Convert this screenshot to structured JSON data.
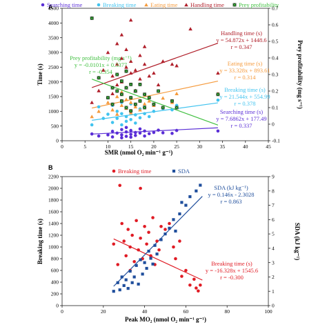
{
  "colors": {
    "searching": "#5a2ed6",
    "breaking": "#41c3ef",
    "eating": "#f59a3c",
    "handling": "#b01f2a",
    "profitability": "#3fbf3f",
    "breaking_b": "#e01b24",
    "sda": "#1f4e9c",
    "axis": "#222222"
  },
  "icons": {
    "searching": "circle-marker",
    "breaking": "circle-marker",
    "eating": "triangle-marker",
    "handling": "triangle-marker",
    "profitability": "x-square-marker",
    "breaking_b": "circle-marker",
    "sda": "square-marker"
  },
  "chart_data": [
    {
      "panel": "A",
      "type": "scatter",
      "xlabel": "SMR (nmol O₂ min⁻¹ g⁻¹)",
      "ylabel": "Time (s)",
      "y2label": "Prey profitability (mg s⁻¹)",
      "xlim": [
        0,
        45
      ],
      "ylim": [
        0,
        4500
      ],
      "y2lim": [
        -0.1,
        0.7
      ],
      "xticks": [
        "0",
        "5",
        "10",
        "15",
        "20",
        "25",
        "30",
        "35",
        "40",
        "45"
      ],
      "yticks": [
        "0",
        "500",
        "1000",
        "1500",
        "2000",
        "2500",
        "3000",
        "3500",
        "4000",
        "4500"
      ],
      "y2ticks": [
        "-0.1",
        "0",
        "0.1",
        "0.2",
        "0.3",
        "0.4",
        "0.5",
        "0.6",
        "0.7"
      ],
      "legend_position": "top",
      "series": [
        {
          "key": "searching",
          "name": "Searching time",
          "axis": "left",
          "marker": "circle",
          "fit": {
            "slope": 7.6862,
            "intercept": 177.49,
            "x_range": [
              6.5,
              34
            ]
          },
          "annotation": [
            "Searching time (s)",
            "y = 7.6862x + 177.49",
            "r = 0.337"
          ],
          "points": [
            [
              6.5,
              230
            ],
            [
              8,
              160
            ],
            [
              10,
              200
            ],
            [
              11,
              320
            ],
            [
              11,
              130
            ],
            [
              12,
              260
            ],
            [
              13,
              380
            ],
            [
              13,
              200
            ],
            [
              13,
              100
            ],
            [
              14,
              300
            ],
            [
              14,
              150
            ],
            [
              14,
              450
            ],
            [
              15,
              220
            ],
            [
              15,
              350
            ],
            [
              15,
              120
            ],
            [
              16,
              280
            ],
            [
              16,
              180
            ],
            [
              17,
              260
            ],
            [
              17,
              400
            ],
            [
              18,
              330
            ],
            [
              18,
              160
            ],
            [
              19,
              240
            ],
            [
              20,
              280
            ],
            [
              21,
              360
            ],
            [
              22,
              270
            ],
            [
              24,
              250
            ],
            [
              25,
              350
            ],
            [
              34,
              330
            ]
          ]
        },
        {
          "key": "breaking",
          "name": "Breaking time",
          "axis": "left",
          "marker": "circle",
          "fit": {
            "slope": 21.544,
            "intercept": 554.99,
            "x_range": [
              6.5,
              34
            ]
          },
          "annotation": [
            "Breaking time (s)",
            "y = 21.544x + 554.99",
            "r = 0.378"
          ],
          "points": [
            [
              6.5,
              540
            ],
            [
              8,
              1150
            ],
            [
              9,
              760
            ],
            [
              10,
              900
            ],
            [
              11,
              1200
            ],
            [
              11,
              620
            ],
            [
              12,
              1000
            ],
            [
              12,
              760
            ],
            [
              13,
              1300
            ],
            [
              13,
              920
            ],
            [
              13,
              540
            ],
            [
              14,
              1120
            ],
            [
              14,
              820
            ],
            [
              14,
              660
            ],
            [
              15,
              1000
            ],
            [
              15,
              720
            ],
            [
              15,
              1250
            ],
            [
              16,
              880
            ],
            [
              16,
              600
            ],
            [
              17,
              1080
            ],
            [
              17,
              780
            ],
            [
              18,
              920
            ],
            [
              18,
              1150
            ],
            [
              19,
              820
            ],
            [
              20,
              1000
            ],
            [
              22,
              1100
            ],
            [
              24,
              1050
            ],
            [
              25,
              1200
            ],
            [
              34,
              1380
            ]
          ]
        },
        {
          "key": "eating",
          "name": "Eating time",
          "axis": "left",
          "marker": "triangle",
          "fit": {
            "slope": 33.328,
            "intercept": 893.61,
            "x_range": [
              6.5,
              34
            ]
          },
          "annotation": [
            "Eating time (s)",
            "y = 33.328x + 893.61",
            "r = 0.314"
          ],
          "points": [
            [
              6.5,
              820
            ],
            [
              8,
              1000
            ],
            [
              10,
              1300
            ],
            [
              11,
              1050
            ],
            [
              12,
              1500
            ],
            [
              12,
              900
            ],
            [
              13,
              1200
            ],
            [
              13,
              1650
            ],
            [
              14,
              1100
            ],
            [
              14,
              1400
            ],
            [
              15,
              950
            ],
            [
              15,
              1300
            ],
            [
              16,
              1150
            ],
            [
              16,
              1700
            ],
            [
              17,
              1050
            ],
            [
              18,
              1250
            ],
            [
              19,
              1350
            ],
            [
              20,
              1200
            ],
            [
              22,
              1450
            ],
            [
              24,
              1300
            ],
            [
              25,
              1600
            ],
            [
              34,
              1600
            ]
          ]
        },
        {
          "key": "handling",
          "name": "Handling time",
          "axis": "left",
          "marker": "triangle",
          "fit": {
            "slope": 54.872,
            "intercept": 1448.6,
            "x_range": [
              6.5,
              34
            ]
          },
          "annotation": [
            "Handling time (s)",
            "y = 54.872x + 1448.6",
            "r = 0.347"
          ],
          "points": [
            [
              6.5,
              1300
            ],
            [
              8,
              1700
            ],
            [
              9,
              2400
            ],
            [
              10,
              3000
            ],
            [
              11,
              2200
            ],
            [
              11,
              1600
            ],
            [
              12,
              2600
            ],
            [
              12,
              3300
            ],
            [
              12,
              1900
            ],
            [
              13,
              2800
            ],
            [
              13,
              2000
            ],
            [
              13,
              3600
            ],
            [
              14,
              2500
            ],
            [
              14,
              1800
            ],
            [
              14,
              3100
            ],
            [
              15,
              2300
            ],
            [
              15,
              2700
            ],
            [
              15,
              4100
            ],
            [
              16,
              2400
            ],
            [
              16,
              1700
            ],
            [
              17,
              2900
            ],
            [
              17,
              2100
            ],
            [
              18,
              2600
            ],
            [
              18,
              3200
            ],
            [
              19,
              2200
            ],
            [
              20,
              2300
            ],
            [
              21,
              1900
            ],
            [
              22,
              2700
            ],
            [
              24,
              2600
            ],
            [
              25,
              2550
            ],
            [
              28,
              3800
            ],
            [
              34,
              2300
            ]
          ]
        },
        {
          "key": "profitability",
          "name": "Prey profitability",
          "axis": "right",
          "marker": "x-square",
          "fit": {
            "slope": -0.0101,
            "intercept": 0.3377,
            "x_range": [
              6.5,
              34
            ]
          },
          "annotation": [
            "Prey profitability (mg s⁻¹)",
            "y = -0.0101x + 0.3377",
            "r = -0.354"
          ],
          "points": [
            [
              6.5,
              0.64
            ],
            [
              8,
              0.28
            ],
            [
              10,
              0.16
            ],
            [
              11,
              0.22
            ],
            [
              11,
              0.12
            ],
            [
              12,
              0.2
            ],
            [
              12,
              0.3
            ],
            [
              13,
              0.14
            ],
            [
              13,
              0.26
            ],
            [
              13,
              0.18
            ],
            [
              14,
              0.1
            ],
            [
              14,
              0.22
            ],
            [
              14,
              0.32
            ],
            [
              15,
              0.16
            ],
            [
              15,
              0.24
            ],
            [
              15,
              0.08
            ],
            [
              16,
              0.2
            ],
            [
              16,
              0.12
            ],
            [
              17,
              0.14
            ],
            [
              17,
              0.24
            ],
            [
              18,
              0.18
            ],
            [
              18,
              0.1
            ],
            [
              19,
              0.16
            ],
            [
              20,
              0.12
            ],
            [
              21,
              0.2
            ],
            [
              22,
              0.1
            ],
            [
              24,
              0.14
            ],
            [
              25,
              0.1
            ],
            [
              34,
              0.18
            ]
          ]
        }
      ]
    },
    {
      "panel": "B",
      "type": "scatter",
      "xlabel": "Peak MO₂ (nmol O₂ min⁻¹ g⁻¹)",
      "ylabel": "Breaking time (s)",
      "y2label": "SDA (kJ kg⁻¹)",
      "xlim": [
        0,
        100
      ],
      "ylim": [
        0,
        2200
      ],
      "y2lim": [
        0,
        9
      ],
      "xticks": [
        "0",
        "20",
        "40",
        "60",
        "80",
        "100"
      ],
      "yticks": [
        "0",
        "200",
        "400",
        "600",
        "800",
        "1000",
        "1200",
        "1400",
        "1600",
        "1800",
        "2000",
        "2200"
      ],
      "y2ticks": [
        "0",
        "1",
        "2",
        "3",
        "4",
        "5",
        "6",
        "7",
        "8",
        "9"
      ],
      "legend_position": "top",
      "series": [
        {
          "key": "breaking_b",
          "name": "Breaking time",
          "axis": "left",
          "marker": "circle",
          "fit": {
            "slope": -16.328,
            "intercept": 1545.6,
            "x_range": [
              25,
              68
            ]
          },
          "annotation": [
            "Breaking time  (s)",
            "y = -16.328x + 1545.6",
            "r = -0.300"
          ],
          "points": [
            [
              25,
              1050
            ],
            [
              27,
              700
            ],
            [
              28,
              2050
            ],
            [
              29,
              1400
            ],
            [
              30,
              1100
            ],
            [
              31,
              850
            ],
            [
              32,
              1300
            ],
            [
              33,
              1000
            ],
            [
              33,
              600
            ],
            [
              34,
              1200
            ],
            [
              35,
              750
            ],
            [
              36,
              1450
            ],
            [
              37,
              950
            ],
            [
              38,
              1150
            ],
            [
              38,
              2000
            ],
            [
              39,
              800
            ],
            [
              40,
              1350
            ],
            [
              41,
              1050
            ],
            [
              42,
              1250
            ],
            [
              43,
              850
            ],
            [
              44,
              1500
            ],
            [
              45,
              700
            ],
            [
              46,
              1100
            ],
            [
              47,
              950
            ],
            [
              48,
              1350
            ],
            [
              50,
              1300
            ],
            [
              52,
              1400
            ],
            [
              54,
              1000
            ],
            [
              55,
              800
            ],
            [
              57,
              1100
            ],
            [
              58,
              500
            ],
            [
              60,
              600
            ],
            [
              62,
              350
            ],
            [
              64,
              450
            ],
            [
              65,
              300
            ],
            [
              66,
              250
            ],
            [
              67,
              350
            ]
          ]
        },
        {
          "key": "sda",
          "name": "SDA",
          "axis": "right",
          "marker": "square",
          "fit": {
            "slope": 0.146,
            "intercept": -2.3028,
            "x_range": [
              25,
              68
            ]
          },
          "annotation": [
            "SDA  (kJ kg⁻¹)",
            "y = 0.146x - 2.3028",
            "r = 0.863"
          ],
          "points": [
            [
              25,
              1.0
            ],
            [
              27,
              1.6
            ],
            [
              28,
              1.1
            ],
            [
              29,
              2.0
            ],
            [
              30,
              1.4
            ],
            [
              31,
              1.8
            ],
            [
              32,
              1.2
            ],
            [
              33,
              2.4
            ],
            [
              34,
              1.6
            ],
            [
              35,
              2.0
            ],
            [
              36,
              2.8
            ],
            [
              37,
              1.5
            ],
            [
              38,
              3.2
            ],
            [
              39,
              2.2
            ],
            [
              40,
              3.0
            ],
            [
              41,
              2.6
            ],
            [
              42,
              3.8
            ],
            [
              43,
              3.3
            ],
            [
              44,
              2.9
            ],
            [
              45,
              4.2
            ],
            [
              46,
              3.6
            ],
            [
              48,
              4.6
            ],
            [
              50,
              5.0
            ],
            [
              52,
              5.4
            ],
            [
              54,
              6.0
            ],
            [
              55,
              5.2
            ],
            [
              57,
              6.4
            ],
            [
              58,
              7.2
            ],
            [
              60,
              7.0
            ],
            [
              62,
              7.6
            ],
            [
              65,
              8.0
            ],
            [
              67,
              8.4
            ]
          ]
        }
      ]
    }
  ]
}
